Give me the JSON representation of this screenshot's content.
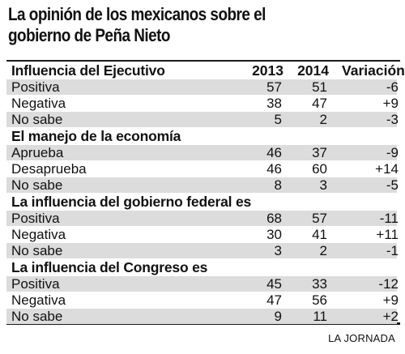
{
  "title_lines": [
    "La opinión de los mexicanos sobre el",
    "gobierno de Peña Nieto"
  ],
  "columns": [
    "2013",
    "2014",
    "Variación"
  ],
  "sections": [
    {
      "heading": "Influencia del Ejecutivo",
      "rows": [
        {
          "label": "Positiva",
          "y2013": "57",
          "y2014": "51",
          "var": "-6"
        },
        {
          "label": "Negativa",
          "y2013": "38",
          "y2014": "47",
          "var": "+9"
        },
        {
          "label": "No sabe",
          "y2013": "5",
          "y2014": "2",
          "var": "-3"
        }
      ]
    },
    {
      "heading": "El manejo de la economía",
      "rows": [
        {
          "label": "Aprueba",
          "y2013": "46",
          "y2014": "37",
          "var": "-9"
        },
        {
          "label": "Desaprueba",
          "y2013": "46",
          "y2014": "60",
          "var": "+14"
        },
        {
          "label": "No sabe",
          "y2013": "8",
          "y2014": "3",
          "var": "-5"
        }
      ]
    },
    {
      "heading": "La influencia del gobierno federal es",
      "rows": [
        {
          "label": "Positiva",
          "y2013": "68",
          "y2014": "57",
          "var": "-11"
        },
        {
          "label": "Negativa",
          "y2013": "30",
          "y2014": "41",
          "var": "+11"
        },
        {
          "label": "No sabe",
          "y2013": "3",
          "y2014": "2",
          "var": "-1"
        }
      ]
    },
    {
      "heading": "La influencia del Congreso es",
      "rows": [
        {
          "label": "Positiva",
          "y2013": "45",
          "y2014": "33",
          "var": "-12"
        },
        {
          "label": "Negativa",
          "y2013": "47",
          "y2014": "56",
          "var": "+9"
        },
        {
          "label": "No sabe",
          "y2013": "9",
          "y2014": "11",
          "var": "+2"
        }
      ]
    }
  ],
  "source": "LA JORNADA"
}
